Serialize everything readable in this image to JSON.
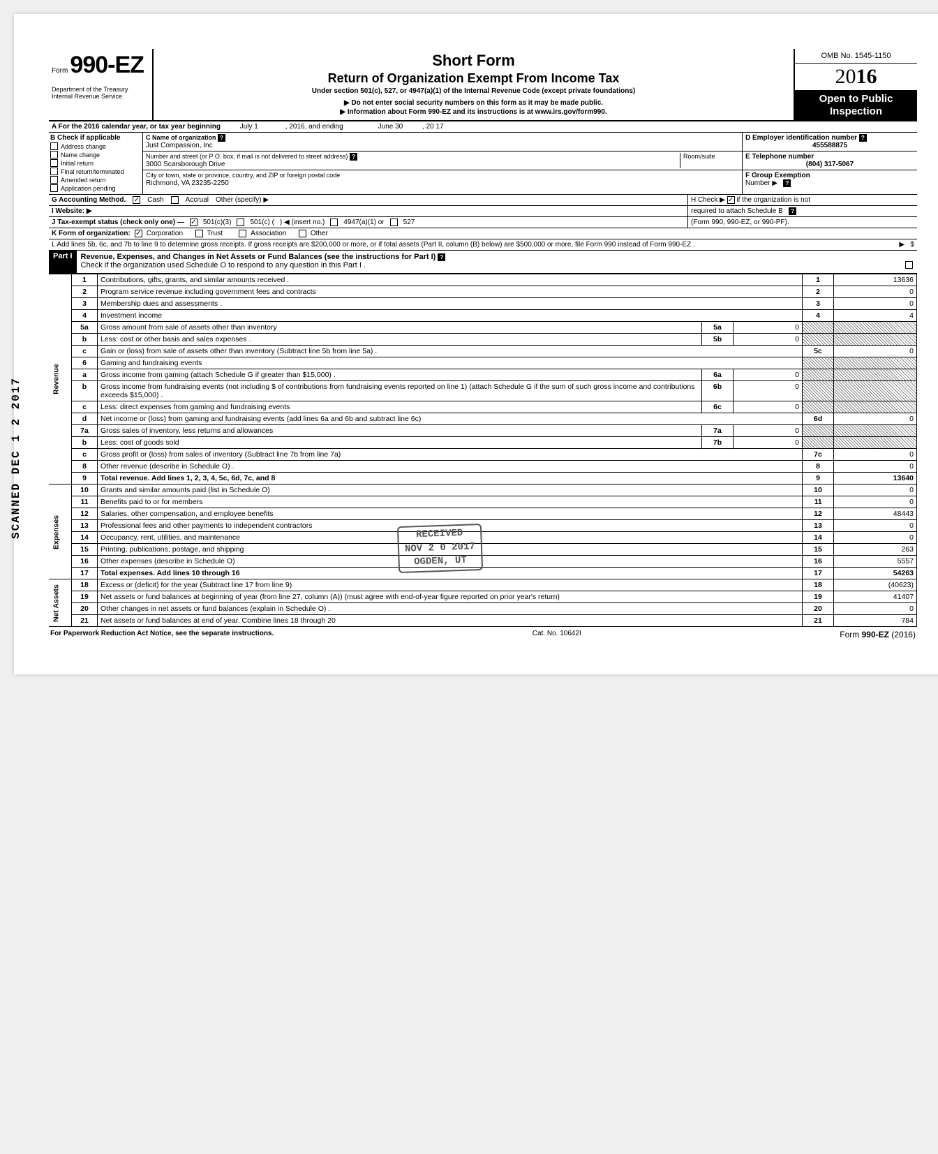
{
  "header": {
    "form_prefix": "Form",
    "form_number": "990-EZ",
    "dept": "Department of the Treasury",
    "irs": "Internal Revenue Service",
    "title1": "Short Form",
    "title2": "Return of Organization Exempt From Income Tax",
    "title3": "Under section 501(c), 527, or 4947(a)(1) of the Internal Revenue Code (except private foundations)",
    "arrow1": "▶ Do not enter social security numbers on this form as it may be made public.",
    "arrow2": "▶ Information about Form 990-EZ and its instructions is at www.irs.gov/form990.",
    "omb": "OMB No. 1545-1150",
    "year_plain": "20",
    "year_bold": "16",
    "open1": "Open to Public",
    "open2": "Inspection"
  },
  "row_a": {
    "label": "A For the 2016 calendar year, or tax year beginning",
    "begin": "July 1",
    "mid": ", 2016, and ending",
    "end": "June 30",
    "tail": ", 20   17"
  },
  "col_b": {
    "header": "B Check if applicable",
    "items": [
      "Address change",
      "Name change",
      "Initial return",
      "Final return/terminated",
      "Amended return",
      "Application pending"
    ]
  },
  "col_c": {
    "c_label": "C  Name of organization",
    "c_val": "Just Compassion, Inc",
    "addr_label": "Number and street (or P O. box, if mail is not delivered to street address)",
    "room": "Room/suite",
    "addr_val": "3000 Scarsborough Drive",
    "city_label": "City or town, state or province, country, and ZIP or foreign postal code",
    "city_val": "Richmond, VA  23235-2250"
  },
  "col_d": {
    "d_label": "D Employer identification number",
    "d_val": "455588875",
    "e_label": "E Telephone number",
    "e_val": "(804) 317-5067",
    "f_label1": "F Group Exemption",
    "f_label2": "Number ▶"
  },
  "line_g": {
    "g": "G  Accounting Method.",
    "cash": "Cash",
    "accrual": "Accrual",
    "other": "Other (specify) ▶",
    "h1": "H Check ▶",
    "h2": "if the organization is not",
    "h3": "required to attach Schedule B"
  },
  "line_i": "I  Website: ▶",
  "line_j": {
    "j": "J  Tax-exempt status (check only one) —",
    "opt1": "501(c)(3)",
    "opt2": "501(c) (",
    "opt2b": ") ◀ (insert no.)",
    "opt3": "4947(a)(1) or",
    "opt4": "527",
    "form_note": "(Form 990, 990-EZ, or 990-PF)."
  },
  "line_k": {
    "k": "K  Form of organization:",
    "corp": "Corporation",
    "trust": "Trust",
    "assoc": "Association",
    "other": "Other"
  },
  "line_l": "L  Add lines 5b, 6c, and 7b to line 9 to determine gross receipts. If gross receipts are $200,000 or more, or if total assets (Part II, column (B) below) are $500,000 or more, file Form 990 instead of Form 990-EZ .",
  "part1": {
    "label": "Part I",
    "title": "Revenue, Expenses, and Changes in Net Assets or Fund Balances (see the instructions for Part I)",
    "check": "Check if the organization used Schedule O to respond to any question in this Part I ."
  },
  "side_labels": {
    "revenue": "Revenue",
    "expenses": "Expenses",
    "netassets": "Net Assets"
  },
  "rows": [
    {
      "n": "1",
      "d": "Contributions, gifts, grants, and similar amounts received .",
      "rn": "1",
      "rv": "13636"
    },
    {
      "n": "2",
      "d": "Program service revenue including government fees and contracts",
      "rn": "2",
      "rv": "0"
    },
    {
      "n": "3",
      "d": "Membership dues and assessments .",
      "rn": "3",
      "rv": "0"
    },
    {
      "n": "4",
      "d": "Investment income",
      "rn": "4",
      "rv": "4"
    },
    {
      "n": "5a",
      "d": "Gross amount from sale of assets other than inventory",
      "mn": "5a",
      "mv": "0"
    },
    {
      "n": "b",
      "d": "Less: cost or other basis and sales expenses .",
      "mn": "5b",
      "mv": "0"
    },
    {
      "n": "c",
      "d": "Gain or (loss) from sale of assets other than inventory (Subtract line 5b from line 5a) .",
      "rn": "5c",
      "rv": "0"
    },
    {
      "n": "6",
      "d": "Gaming and fundraising events"
    },
    {
      "n": "a",
      "d": "Gross income from gaming (attach Schedule G if greater than $15,000) .",
      "mn": "6a",
      "mv": "0"
    },
    {
      "n": "b",
      "d": "Gross income from fundraising events (not including  $                    of contributions from fundraising events reported on line 1) (attach Schedule G if the sum of such gross income and contributions exceeds $15,000) .",
      "mn": "6b",
      "mv": "0"
    },
    {
      "n": "c",
      "d": "Less: direct expenses from gaming and fundraising events",
      "mn": "6c",
      "mv": "0"
    },
    {
      "n": "d",
      "d": "Net income or (loss) from gaming and fundraising events (add lines 6a and 6b and subtract line 6c)",
      "rn": "6d",
      "rv": "0"
    },
    {
      "n": "7a",
      "d": "Gross sales of inventory, less returns and allowances",
      "mn": "7a",
      "mv": "0"
    },
    {
      "n": "b",
      "d": "Less: cost of goods sold",
      "mn": "7b",
      "mv": "0"
    },
    {
      "n": "c",
      "d": "Gross profit or (loss) from sales of inventory (Subtract line 7b from line 7a)",
      "rn": "7c",
      "rv": "0"
    },
    {
      "n": "8",
      "d": "Other revenue (describe in Schedule O) .",
      "rn": "8",
      "rv": "0"
    },
    {
      "n": "9",
      "d": "Total revenue. Add lines 1, 2, 3, 4, 5c, 6d, 7c, and 8",
      "rn": "9",
      "rv": "13640",
      "bold": true
    },
    {
      "n": "10",
      "d": "Grants and similar amounts paid (list in Schedule O)",
      "rn": "10",
      "rv": "0"
    },
    {
      "n": "11",
      "d": "Benefits paid to or for members",
      "rn": "11",
      "rv": "0"
    },
    {
      "n": "12",
      "d": "Salaries, other compensation, and employee benefits",
      "rn": "12",
      "rv": "48443"
    },
    {
      "n": "13",
      "d": "Professional fees and other payments to independent contractors",
      "rn": "13",
      "rv": "0"
    },
    {
      "n": "14",
      "d": "Occupancy, rent, utilities, and maintenance",
      "rn": "14",
      "rv": "0"
    },
    {
      "n": "15",
      "d": "Printing, publications, postage, and shipping",
      "rn": "15",
      "rv": "263"
    },
    {
      "n": "16",
      "d": "Other expenses (describe in Schedule O)",
      "rn": "16",
      "rv": "5557"
    },
    {
      "n": "17",
      "d": "Total expenses. Add lines 10 through 16",
      "rn": "17",
      "rv": "54263",
      "bold": true
    },
    {
      "n": "18",
      "d": "Excess or (deficit) for the year (Subtract line 17 from line 9)",
      "rn": "18",
      "rv": "(40623)"
    },
    {
      "n": "19",
      "d": "Net assets or fund balances at beginning of year (from line 27, column (A)) (must agree with end-of-year figure reported on prior year's return)",
      "rn": "19",
      "rv": "41407"
    },
    {
      "n": "20",
      "d": "Other changes in net assets or fund balances (explain in Schedule O) .",
      "rn": "20",
      "rv": "0"
    },
    {
      "n": "21",
      "d": "Net assets or fund balances at end of year. Combine lines 18 through 20",
      "rn": "21",
      "rv": "784"
    }
  ],
  "footer": {
    "left": "For Paperwork Reduction Act Notice, see the separate instructions.",
    "mid": "Cat. No. 10642I",
    "right_form": "Form 990-EZ (2016)"
  },
  "stamp": {
    "received": "RECEIVED",
    "date": "NOV 2 0 2017",
    "place": "OGDEN, UT"
  },
  "scanned": "SCANNED DEC 1 2 2017"
}
